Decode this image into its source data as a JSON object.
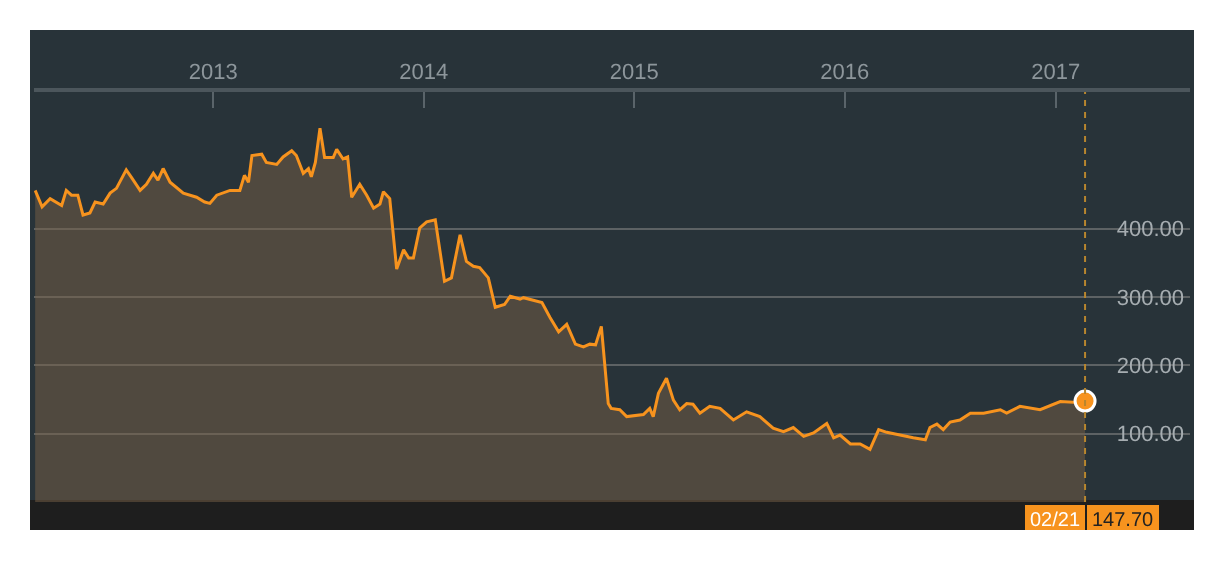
{
  "chart_data": {
    "type": "area",
    "xlim": [
      "2012-02-25",
      "2017-08-22"
    ],
    "xticks": [
      {
        "value": "2013-01-01",
        "label": "2013"
      },
      {
        "value": "2014-01-01",
        "label": "2014"
      },
      {
        "value": "2015-01-01",
        "label": "2015"
      },
      {
        "value": "2016-01-01",
        "label": "2016"
      },
      {
        "value": "2017-01-01",
        "label": "2017"
      }
    ],
    "ylim": [
      0,
      600
    ],
    "yticks": [
      {
        "value": 100,
        "label": "100.00"
      },
      {
        "value": 200,
        "label": "200.00"
      },
      {
        "value": 300,
        "label": "300.00"
      },
      {
        "value": 400,
        "label": "400.00"
      }
    ],
    "grid": "y",
    "series": [
      {
        "type": "area",
        "color": "#f7931e",
        "x": [
          "2012-02-27",
          "2012-03-10",
          "2012-03-24",
          "2012-04-13",
          "2012-04-21",
          "2012-04-30",
          "2012-05-11",
          "2012-05-20",
          "2012-06-01",
          "2012-06-10",
          "2012-06-24",
          "2012-07-06",
          "2012-07-17",
          "2012-08-03",
          "2012-08-12",
          "2012-08-27",
          "2012-09-07",
          "2012-09-19",
          "2012-09-27",
          "2012-10-06",
          "2012-10-18",
          "2012-11-10",
          "2012-12-03",
          "2012-12-17",
          "2012-12-26",
          "2013-01-07",
          "2013-01-30",
          "2013-02-16",
          "2013-02-24",
          "2013-03-03",
          "2013-03-09",
          "2013-03-26",
          "2013-04-03",
          "2013-04-21",
          "2013-05-02",
          "2013-05-17",
          "2013-05-25",
          "2013-06-06",
          "2013-06-15",
          "2013-06-20",
          "2013-06-27",
          "2013-07-05",
          "2013-07-13",
          "2013-07-28",
          "2013-08-03",
          "2013-08-14",
          "2013-08-22",
          "2013-08-29",
          "2013-09-12",
          "2013-09-24",
          "2013-10-06",
          "2013-10-17",
          "2013-10-23",
          "2013-11-03",
          "2013-11-15",
          "2013-11-27",
          "2013-12-06",
          "2013-12-14",
          "2013-12-25",
          "2014-01-06",
          "2014-01-21",
          "2014-02-06",
          "2014-02-18",
          "2014-03-05",
          "2014-03-16",
          "2014-03-28",
          "2014-04-08",
          "2014-04-23",
          "2014-05-05",
          "2014-05-21",
          "2014-05-31",
          "2014-06-17",
          "2014-06-23",
          "2014-07-25",
          "2014-08-08",
          "2014-08-23",
          "2014-09-06",
          "2014-09-21",
          "2014-10-05",
          "2014-10-16",
          "2014-10-26",
          "2014-11-05",
          "2014-11-17",
          "2014-11-22",
          "2014-12-07",
          "2014-12-19",
          "2015-01-17",
          "2015-01-28",
          "2015-02-03",
          "2015-02-12",
          "2015-02-26",
          "2015-03-10",
          "2015-03-21",
          "2015-04-02",
          "2015-04-13",
          "2015-04-25",
          "2015-05-12",
          "2015-05-30",
          "2015-06-22",
          "2015-07-15",
          "2015-08-07",
          "2015-08-30",
          "2015-09-17",
          "2015-10-04",
          "2015-10-22",
          "2015-11-08",
          "2015-12-01",
          "2015-12-13",
          "2015-12-24",
          "2016-01-11",
          "2016-01-28",
          "2016-02-14",
          "2016-02-29",
          "2016-03-14",
          "2016-04-06",
          "2016-04-29",
          "2016-05-20",
          "2016-05-28",
          "2016-06-09",
          "2016-06-20",
          "2016-07-02",
          "2016-07-19",
          "2016-08-06",
          "2016-08-29",
          "2016-09-27",
          "2016-10-08",
          "2016-10-31",
          "2016-12-05",
          "2017-01-09",
          "2017-02-01",
          "2017-02-21"
        ],
        "values": [
          456,
          432,
          444,
          434,
          456,
          449,
          449,
          420,
          423,
          439,
          436,
          452,
          459,
          486,
          475,
          456,
          465,
          481,
          471,
          488,
          468,
          452,
          446,
          439,
          437,
          449,
          456,
          456,
          478,
          468,
          507,
          509,
          497,
          494,
          505,
          514,
          507,
          481,
          488,
          476,
          497,
          547,
          504,
          504,
          516,
          502,
          505,
          446,
          465,
          449,
          430,
          436,
          454,
          444,
          341,
          369,
          357,
          357,
          401,
          410,
          413,
          323,
          328,
          391,
          352,
          345,
          343,
          328,
          285,
          289,
          301,
          297,
          299,
          292,
          270,
          249,
          260,
          231,
          227,
          231,
          230,
          257,
          144,
          137,
          135,
          125,
          128,
          137,
          125,
          159,
          181,
          149,
          135,
          144,
          143,
          130,
          140,
          137,
          120,
          132,
          125,
          108,
          103,
          109,
          96,
          101,
          115,
          94,
          98,
          85,
          85,
          77,
          106,
          102,
          98,
          94,
          91,
          109,
          114,
          106,
          117,
          120,
          130,
          130,
          135,
          130,
          140,
          135,
          147,
          146,
          147.7
        ]
      },
      {
        "type": "scatter",
        "color": "#f7931e",
        "x": [
          "2017-02-21"
        ],
        "values": [
          147.7
        ]
      }
    ],
    "ref_lines": [
      {
        "axis": "x",
        "value": "2017-02-21",
        "label": "02/21",
        "color": "#b8862e",
        "line_style": "dotted"
      }
    ],
    "annotations": [
      "147.70"
    ]
  }
}
